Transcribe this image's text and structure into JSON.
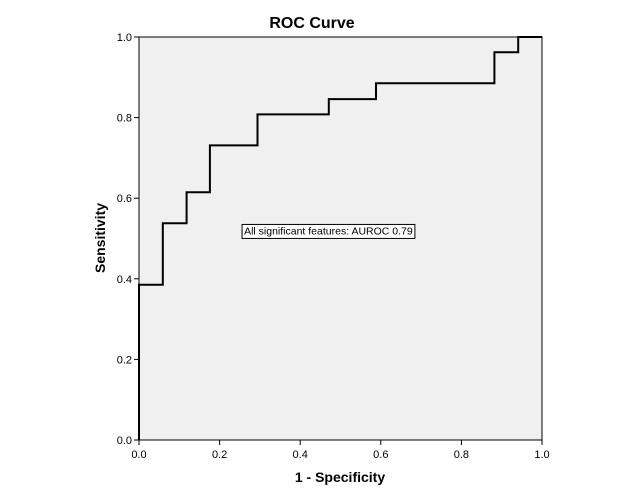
{
  "chart_data": {
    "type": "line",
    "title": "ROC Curve",
    "xlabel": "1 - Specificity",
    "ylabel": "Sensitivity",
    "xlim": [
      0,
      1
    ],
    "ylim": [
      0,
      1
    ],
    "xticks": [
      "0.0",
      "0.2",
      "0.4",
      "0.6",
      "0.8",
      "1.0"
    ],
    "yticks": [
      "0.0",
      "0.2",
      "0.4",
      "0.6",
      "0.8",
      "1.0"
    ],
    "grid": false,
    "background_color": "#f0f0f0",
    "line_color": "#000000",
    "series": [
      {
        "name": "All significant features",
        "step": true,
        "x": [
          0.0,
          0.0,
          0.059,
          0.059,
          0.118,
          0.118,
          0.176,
          0.176,
          0.294,
          0.294,
          0.471,
          0.471,
          0.588,
          0.588,
          0.882,
          0.882,
          0.941,
          0.941,
          1.0
        ],
        "y": [
          0.0,
          0.385,
          0.385,
          0.538,
          0.538,
          0.615,
          0.615,
          0.731,
          0.731,
          0.808,
          0.808,
          0.846,
          0.846,
          0.885,
          0.885,
          0.962,
          0.962,
          1.0,
          1.0
        ]
      }
    ],
    "annotation": {
      "text": "All significant features: AUROC 0.79",
      "x": 0.47,
      "y": 0.52
    }
  }
}
